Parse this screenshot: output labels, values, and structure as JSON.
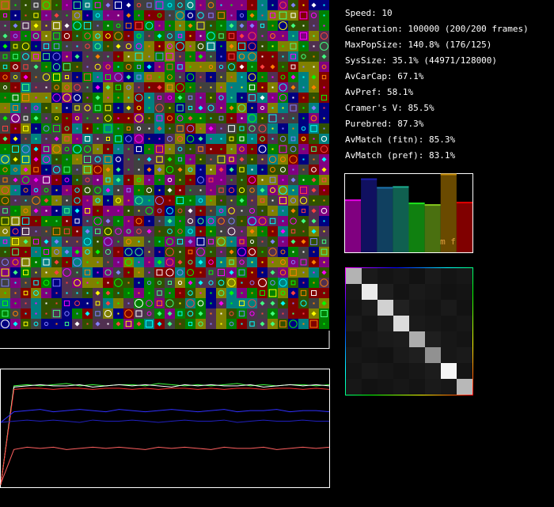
{
  "stats": [
    "Speed: 10",
    "Generation: 100000 (200/200 frames)",
    "MaxPopSize: 140.8% (176/125)",
    "SysSize: 35.1% (44971/128000)",
    "AvCarCap: 67.1%",
    "AvPref: 58.1%",
    "Cramer's V: 85.5%",
    "Purebred: 87.3%",
    "AvMatch (fitn): 85.3%",
    "AvMatch (pref): 83.1%"
  ],
  "bar_panel": {
    "ylim": [
      0,
      100
    ],
    "label": "m f",
    "bars": [
      {
        "color": "#800080",
        "value": 67
      },
      {
        "color": "#101060",
        "value": 94
      },
      {
        "color": "#104060",
        "value": 83
      },
      {
        "color": "#106050",
        "value": 84
      },
      {
        "color": "#108010",
        "value": 63
      },
      {
        "color": "#4a7010",
        "value": 61
      },
      {
        "color": "#6a4a00",
        "value": 100
      },
      {
        "color": "#800000",
        "value": 64
      }
    ]
  },
  "matrix": {
    "max": 100,
    "cells": [
      [
        70,
        10,
        8,
        9,
        7,
        10,
        8,
        9
      ],
      [
        9,
        92,
        12,
        8,
        10,
        9,
        7,
        8
      ],
      [
        8,
        11,
        82,
        13,
        9,
        8,
        10,
        7
      ],
      [
        10,
        8,
        12,
        86,
        10,
        9,
        8,
        9
      ],
      [
        7,
        9,
        10,
        11,
        68,
        12,
        9,
        8
      ],
      [
        9,
        8,
        7,
        10,
        12,
        57,
        9,
        10
      ],
      [
        8,
        10,
        9,
        8,
        9,
        11,
        96,
        8
      ],
      [
        9,
        7,
        8,
        9,
        8,
        10,
        9,
        72
      ]
    ]
  },
  "graph": {
    "ylim": [
      0,
      100
    ],
    "series": [
      {
        "color": "#40ff40",
        "values": [
          2,
          86,
          87,
          86,
          87,
          88,
          86,
          87,
          86,
          87,
          87,
          86,
          88,
          87,
          86,
          87,
          86,
          87,
          88,
          86,
          87,
          86,
          87,
          87,
          86,
          87
        ]
      },
      {
        "color": "#ffffff",
        "values": [
          2,
          85,
          86,
          87,
          86,
          86,
          87,
          85,
          86,
          87,
          86,
          87,
          86,
          85,
          87,
          86,
          87,
          86,
          86,
          87,
          85,
          86,
          87,
          86,
          87,
          86
        ]
      },
      {
        "color": "#ff3030",
        "values": [
          2,
          83,
          84,
          84,
          83,
          84,
          84,
          83,
          84,
          84,
          83,
          84,
          83,
          84,
          84,
          83,
          84,
          83,
          84,
          84,
          83,
          84,
          84,
          83,
          84,
          83
        ]
      },
      {
        "color": "#3030ff",
        "values": [
          55,
          64,
          65,
          66,
          64,
          65,
          66,
          65,
          64,
          66,
          65,
          64,
          65,
          66,
          65,
          64,
          65,
          66,
          64,
          65,
          65,
          66,
          64,
          65,
          65,
          64
        ]
      },
      {
        "color": "#2020c0",
        "values": [
          55,
          56,
          57,
          56,
          57,
          56,
          55,
          57,
          56,
          56,
          57,
          56,
          55,
          56,
          57,
          56,
          56,
          57,
          55,
          56,
          57,
          56,
          56,
          57,
          56,
          56
        ]
      },
      {
        "color": "#ff6060",
        "values": [
          3,
          32,
          34,
          33,
          34,
          32,
          33,
          34,
          33,
          34,
          33,
          32,
          34,
          33,
          34,
          33,
          32,
          34,
          33,
          33,
          34,
          32,
          33,
          34,
          33,
          34
        ]
      }
    ]
  }
}
